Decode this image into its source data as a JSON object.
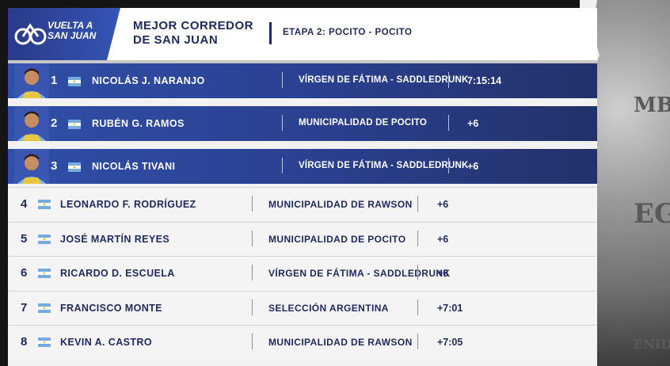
{
  "brand": {
    "logo_line1": "VUELTA A",
    "logo_line2": "SAN JUAN"
  },
  "header": {
    "title_line1": "MEJOR CORREDOR",
    "title_line2": "DE SAN JUAN",
    "stage": "ETAPA 2: POCITO - POCITO"
  },
  "colors": {
    "accent": "#2a3f8e",
    "text_dark": "#1e2a5e",
    "flag_blue": "#74acdf"
  },
  "rows": [
    {
      "pos": "1",
      "name": "NICOLÁS J. NARANJO",
      "team": "VÍRGEN DE FÁTIMA - SADDLEDRUNK",
      "time": "7:15:14",
      "flag": "argentina-flag-icon"
    },
    {
      "pos": "2",
      "name": "RUBÉN G. RAMOS",
      "team": "MUNICIPALIDAD DE POCITO",
      "time": "+6",
      "flag": "argentina-flag-icon"
    },
    {
      "pos": "3",
      "name": "NICOLÁS TIVANI",
      "team": "VÍRGEN DE FÁTIMA - SADDLEDRUNK",
      "time": "+6",
      "flag": "argentina-flag-icon"
    },
    {
      "pos": "4",
      "name": "LEONARDO F. RODRÍGUEZ",
      "team": "MUNICIPALIDAD DE RAWSON",
      "time": "+6",
      "flag": "argentina-flag-icon"
    },
    {
      "pos": "5",
      "name": "JOSÉ MARTÍN REYES",
      "team": "MUNICIPALIDAD DE POCITO",
      "time": "+6",
      "flag": "argentina-flag-icon"
    },
    {
      "pos": "6",
      "name": "RICARDO D. ESCUELA",
      "team": "VÍRGEN DE FÁTIMA - SADDLEDRUNK",
      "time": "+6",
      "flag": "argentina-flag-icon"
    },
    {
      "pos": "7",
      "name": "FRANCISCO MONTE",
      "team": "SELECCIÓN ARGENTINA",
      "time": "+7:01",
      "flag": "argentina-flag-icon"
    },
    {
      "pos": "8",
      "name": "KEVIN A. CASTRO",
      "team": "MUNICIPALIDAD DE RAWSON",
      "time": "+7:05",
      "flag": "argentina-flag-icon"
    }
  ]
}
